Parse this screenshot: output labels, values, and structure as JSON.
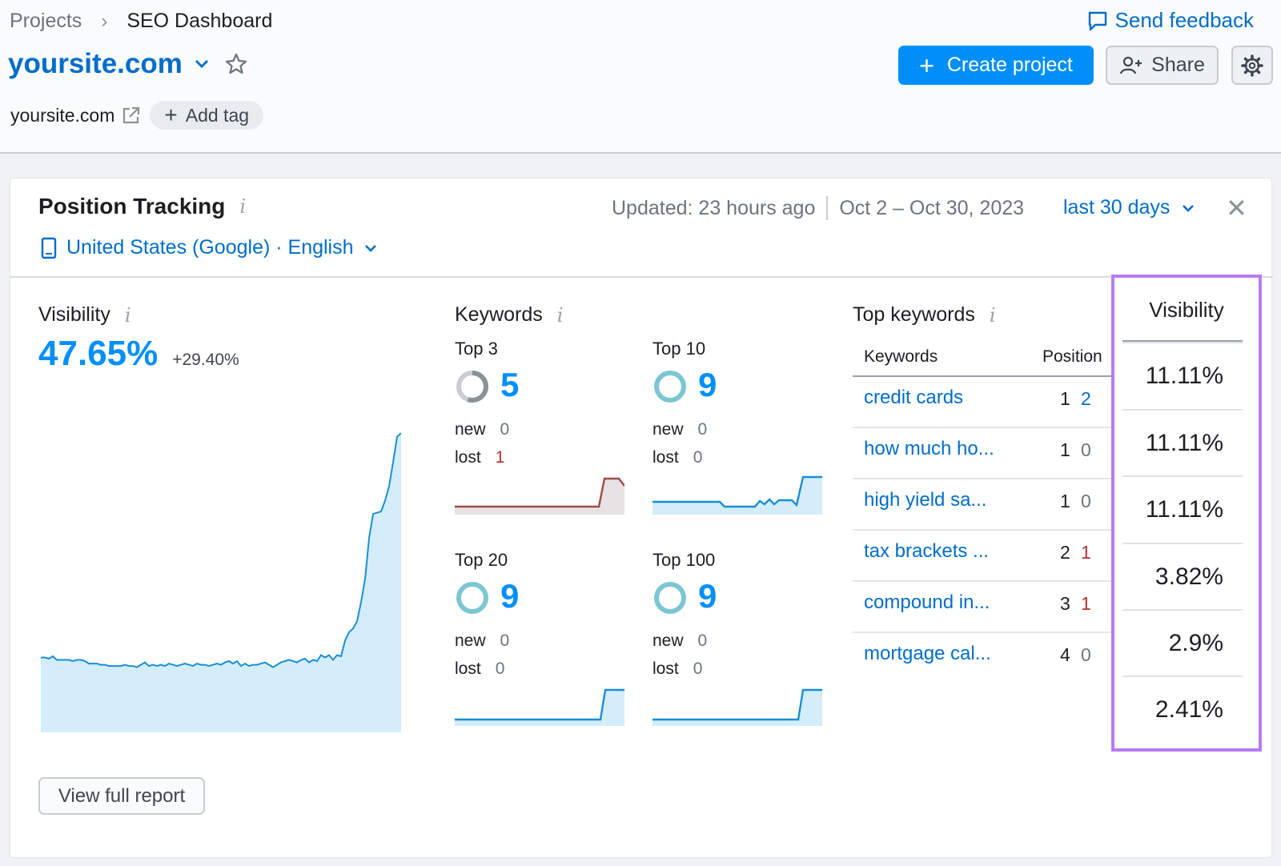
{
  "breadcrumb": {
    "projects": "Projects",
    "separator": "›",
    "current": "SEO Dashboard"
  },
  "feedback": {
    "label": "Send feedback"
  },
  "project": {
    "name": "yoursite.com",
    "domain": "yoursite.com",
    "add_tag": "Add tag"
  },
  "buttons": {
    "create": "Create project",
    "create_icon": "+",
    "share": "Share"
  },
  "widget": {
    "title": "Position Tracking",
    "info": "i",
    "location": "United States (Google) · English",
    "updated": "Updated: 23 hours ago",
    "date_range": "Oct 2 – Oct 30, 2023",
    "period": "last 30 days",
    "close": "✕",
    "view_full_report": "View full report"
  },
  "visibility": {
    "title": "Visibility",
    "value": "47.65%",
    "delta": "+29.40%",
    "series": [
      62,
      62,
      61,
      63,
      60,
      60,
      60,
      60,
      59,
      60,
      60,
      59,
      57,
      57,
      57,
      56,
      56,
      55,
      55,
      55,
      55,
      56,
      55,
      55,
      54,
      56,
      58,
      55,
      56,
      55,
      56,
      55,
      57,
      56,
      55,
      56,
      57,
      56,
      55,
      57,
      56,
      56,
      55,
      56,
      57,
      56,
      58,
      59,
      57,
      59,
      55,
      57,
      55,
      56,
      56,
      57,
      58,
      56,
      54,
      56,
      58,
      59,
      60,
      59,
      58,
      60,
      61,
      58,
      60,
      59,
      64,
      62,
      64,
      60,
      64,
      63,
      76,
      83,
      86,
      92,
      108,
      127,
      161,
      181,
      182,
      183,
      192,
      204,
      224,
      245,
      248
    ]
  },
  "keywords": {
    "title": "Keywords",
    "new_label": "new",
    "lost_label": "lost",
    "blocks": [
      {
        "label": "Top 3",
        "count": "5",
        "new": "0",
        "lost": "1",
        "lost_is_negative": true
      },
      {
        "label": "Top 10",
        "count": "9",
        "new": "0",
        "lost": "0",
        "lost_is_negative": false
      },
      {
        "label": "Top 20",
        "count": "9",
        "new": "0",
        "lost": "0",
        "lost_is_negative": false
      },
      {
        "label": "Top 100",
        "count": "9",
        "new": "0",
        "lost": "0",
        "lost_is_negative": false
      }
    ]
  },
  "top_keywords": {
    "title": "Top keywords",
    "col_keywords": "Keywords",
    "col_position": "Position",
    "rows": [
      {
        "keyword": "credit cards",
        "position": "1",
        "change": "2",
        "change_color": "#006dca"
      },
      {
        "keyword": "how much ho...",
        "position": "1",
        "change": "0",
        "change_color": "#6c7380"
      },
      {
        "keyword": "high yield sa...",
        "position": "1",
        "change": "0",
        "change_color": "#6c7380"
      },
      {
        "keyword": "tax brackets ...",
        "position": "2",
        "change": "1",
        "change_color": "#b3322f"
      },
      {
        "keyword": "compound in...",
        "position": "3",
        "change": "1",
        "change_color": "#b3322f"
      },
      {
        "keyword": "mortgage cal...",
        "position": "4",
        "change": "0",
        "change_color": "#6c7380"
      }
    ]
  },
  "visibility_column": {
    "header": "Visibility",
    "values": [
      "11.11%",
      "11.11%",
      "11.11%",
      "3.82%",
      "2.9%",
      "2.41%"
    ],
    "highlight_color": "#b57cf4"
  },
  "colors": {
    "accent": "#008ff8",
    "link": "#006dca",
    "negative": "#b3322f"
  }
}
